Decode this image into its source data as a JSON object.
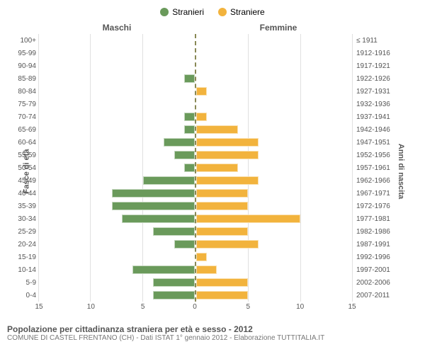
{
  "legend": {
    "male": {
      "label": "Stranieri",
      "color": "#6a9a5b"
    },
    "female": {
      "label": "Straniere",
      "color": "#f2b33d"
    }
  },
  "column_titles": {
    "left": "Maschi",
    "right": "Femmine"
  },
  "y_titles": {
    "left": "Fasce di età",
    "right": "Anni di nascita"
  },
  "age_labels": [
    "100+",
    "95-99",
    "90-94",
    "85-89",
    "80-84",
    "75-79",
    "70-74",
    "65-69",
    "60-64",
    "55-59",
    "50-54",
    "45-49",
    "40-44",
    "35-39",
    "30-34",
    "25-29",
    "20-24",
    "15-19",
    "10-14",
    "5-9",
    "0-4"
  ],
  "year_labels": [
    "≤ 1911",
    "1912-1916",
    "1917-1921",
    "1922-1926",
    "1927-1931",
    "1932-1936",
    "1937-1941",
    "1942-1946",
    "1947-1951",
    "1952-1956",
    "1957-1961",
    "1962-1966",
    "1967-1971",
    "1972-1976",
    "1977-1981",
    "1982-1986",
    "1987-1991",
    "1992-1996",
    "1997-2001",
    "2002-2006",
    "2007-2011"
  ],
  "male_values": [
    0,
    0,
    0,
    1,
    0,
    0,
    1,
    1,
    3,
    2,
    1,
    5,
    8,
    8,
    7,
    4,
    2,
    0,
    6,
    4,
    4
  ],
  "female_values": [
    0,
    0,
    0,
    0,
    1,
    0,
    1,
    4,
    6,
    6,
    4,
    6,
    5,
    5,
    10,
    5,
    6,
    1,
    2,
    5,
    5
  ],
  "x_axis": {
    "max": 15,
    "ticks": [
      0,
      5,
      10,
      15
    ]
  },
  "caption_title": "Popolazione per cittadinanza straniera per età e sesso - 2012",
  "caption_sub": "COMUNE DI CASTEL FRENTANO (CH) - Dati ISTAT 1° gennaio 2012 - Elaborazione TUTTITALIA.IT",
  "colors": {
    "background": "#ffffff",
    "grid": "#e0e0e0",
    "text": "#555555"
  }
}
